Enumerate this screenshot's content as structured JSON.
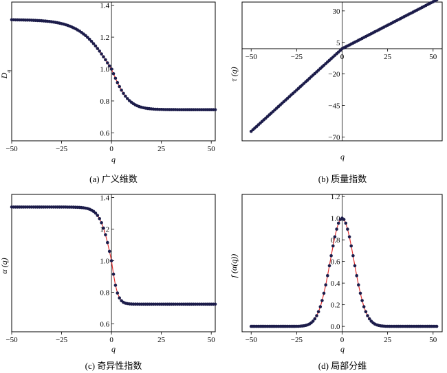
{
  "chart_data": [
    {
      "id": "a",
      "type": "line",
      "caption": "(a) 广义维数",
      "xlabel": "q",
      "ylabel": "D",
      "ylabel_sub": "q",
      "xlim": [
        -50,
        52
      ],
      "ylim": [
        0.55,
        1.42
      ],
      "xticks": [
        -50,
        -25,
        0,
        25,
        50
      ],
      "yticks": [
        0.6,
        0.8,
        1.0,
        1.2,
        1.4
      ],
      "ytick_labels": [
        "0.6",
        "0.8",
        "1.0",
        "1.2",
        "1.4"
      ],
      "curve": {
        "min": 0.745,
        "max": 1.31,
        "center": 1.0,
        "k": 0.115
      },
      "series": [
        {
          "marker_color": "#1c1c4a",
          "line_color": "#e03030"
        }
      ]
    },
    {
      "id": "b",
      "type": "line",
      "caption": "(b) 质量指数",
      "xlabel": "q",
      "ylabel": "τ (q)",
      "xlim": [
        -55,
        55
      ],
      "ylim": [
        -73,
        37
      ],
      "xticks": [
        -50,
        -25,
        0,
        25,
        50
      ],
      "yticks": [
        30,
        5,
        -20,
        -45,
        -70
      ],
      "ytick_labels": [
        "30",
        "5",
        "−20",
        "−45",
        "−70"
      ],
      "slopes": {
        "negative": 1.31,
        "positive": 0.745
      },
      "series": [
        {
          "marker_color": "#1c1c4a",
          "line_color": "#e03030"
        }
      ]
    },
    {
      "id": "c",
      "type": "line",
      "caption": "(c) 奇异性指数",
      "xlabel": "q",
      "ylabel": "α (q)",
      "xlim": [
        -50,
        52
      ],
      "ylim": [
        0.55,
        1.42
      ],
      "xticks": [
        -50,
        -25,
        0,
        25,
        50
      ],
      "yticks": [
        0.6,
        0.8,
        1.0,
        1.2,
        1.4
      ],
      "ytick_labels": [
        "0.6",
        "0.8",
        "1.0",
        "1.2",
        "1.4"
      ],
      "curve": {
        "min": 0.725,
        "max": 1.34,
        "center": 1.0,
        "k": 0.32
      },
      "series": [
        {
          "marker_color": "#1c1c4a",
          "line_color": "#e03030"
        }
      ]
    },
    {
      "id": "d",
      "type": "line",
      "caption": "(d) 局部分维",
      "xlabel": "q",
      "ylabel": "f (α(q))",
      "xlim": [
        -55,
        55
      ],
      "ylim": [
        -0.05,
        1.22
      ],
      "xticks": [
        -50,
        -25,
        0,
        25,
        50
      ],
      "yticks": [
        0.0,
        0.2,
        0.4,
        0.6,
        0.8,
        1.0,
        1.2
      ],
      "ytick_labels": [
        "0.0",
        "0.2",
        "0.4",
        "0.6",
        "0.8",
        "1.0",
        "1.2"
      ],
      "curve": {
        "peak_q": 0,
        "peak": 1.0,
        "sigma": 6.5
      },
      "series": [
        {
          "marker_color": "#1c1c4a",
          "line_color": "#e03030"
        }
      ]
    }
  ]
}
